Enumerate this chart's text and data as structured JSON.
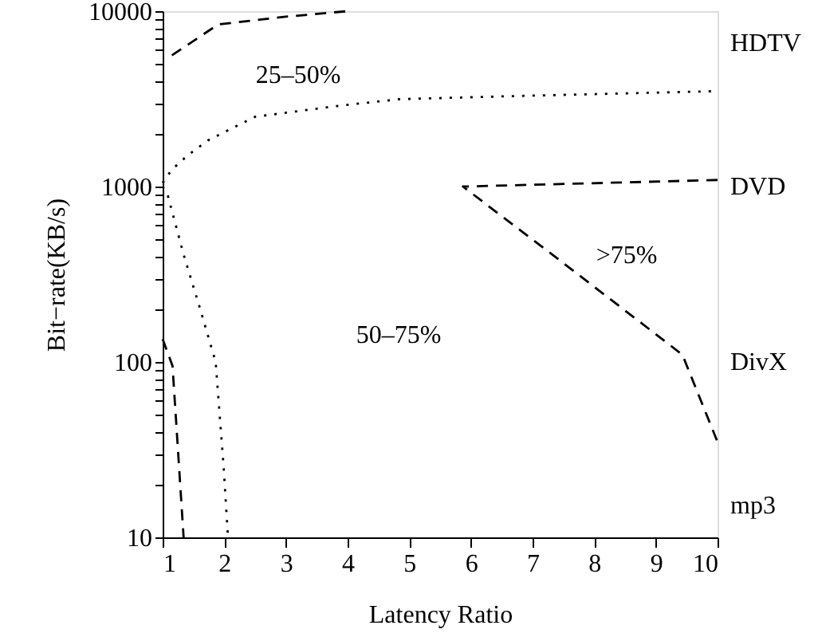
{
  "chart_data": {
    "type": "line",
    "xlabel": "Latency Ratio",
    "ylabel": "Bit−rate(KB/s)",
    "log": "y",
    "grid": false,
    "marker": "none",
    "xlim": [
      1,
      10
    ],
    "xticks": [
      1,
      2,
      3,
      4,
      5,
      6,
      7,
      8,
      9,
      10
    ],
    "ylim": [
      10,
      10000
    ],
    "yticks": [
      10,
      {
        "value": 20,
        "label": null
      },
      {
        "value": 30,
        "label": null
      },
      {
        "value": 40,
        "label": null
      },
      {
        "value": 50,
        "label": null
      },
      {
        "value": 60,
        "label": null
      },
      {
        "value": 70,
        "label": null
      },
      {
        "value": 80,
        "label": null
      },
      {
        "value": 90,
        "label": null
      },
      100,
      {
        "value": 200,
        "label": null
      },
      {
        "value": 300,
        "label": null
      },
      {
        "value": 400,
        "label": null
      },
      {
        "value": 500,
        "label": null
      },
      {
        "value": 600,
        "label": null
      },
      {
        "value": 700,
        "label": null
      },
      {
        "value": 800,
        "label": null
      },
      {
        "value": 900,
        "label": null
      },
      1000,
      {
        "value": 2000,
        "label": null
      },
      {
        "value": 3000,
        "label": null
      },
      {
        "value": 4000,
        "label": null
      },
      {
        "value": 5000,
        "label": null
      },
      {
        "value": 6000,
        "label": null
      },
      {
        "value": 7000,
        "label": null
      },
      {
        "value": 8000,
        "label": null
      },
      {
        "value": 9000,
        "label": null
      },
      10000
    ],
    "series": [
      {
        "color": "#000000",
        "line_style": "dashed",
        "x": [
          1.15,
          1.9,
          3,
          4
        ],
        "values": [
          5600,
          8400,
          9300,
          10000
        ]
      },
      {
        "color": "#000000",
        "line_style": "dashed",
        "x": [
          1,
          1.16,
          1.25,
          1.34
        ],
        "values": [
          135,
          95,
          31,
          10
        ]
      },
      {
        "color": "#000000",
        "line_style": "dotted",
        "x": [
          1,
          1.15,
          1.4,
          1.73,
          2.5,
          3.9,
          4.85,
          7,
          10
        ],
        "values": [
          1050,
          1250,
          1500,
          1830,
          2500,
          2900,
          3150,
          3300,
          3500
        ]
      },
      {
        "color": "#000000",
        "line_style": "dotted",
        "x": [
          1,
          1.08,
          1.34,
          1.6,
          1.86,
          1.99,
          2.06
        ],
        "values": [
          1000,
          900,
          410,
          205,
          100,
          25,
          10
        ]
      },
      {
        "color": "#000000",
        "line_style": "dashed",
        "x": [
          10,
          5.87,
          7.44,
          9.43,
          10
        ],
        "values": [
          1090,
          1000,
          380,
          110,
          35
        ]
      }
    ],
    "annotations": [
      "25–50%",
      "50–75%",
      ">75%",
      "HDTV",
      "DVD",
      "DivX",
      "mp3"
    ]
  }
}
